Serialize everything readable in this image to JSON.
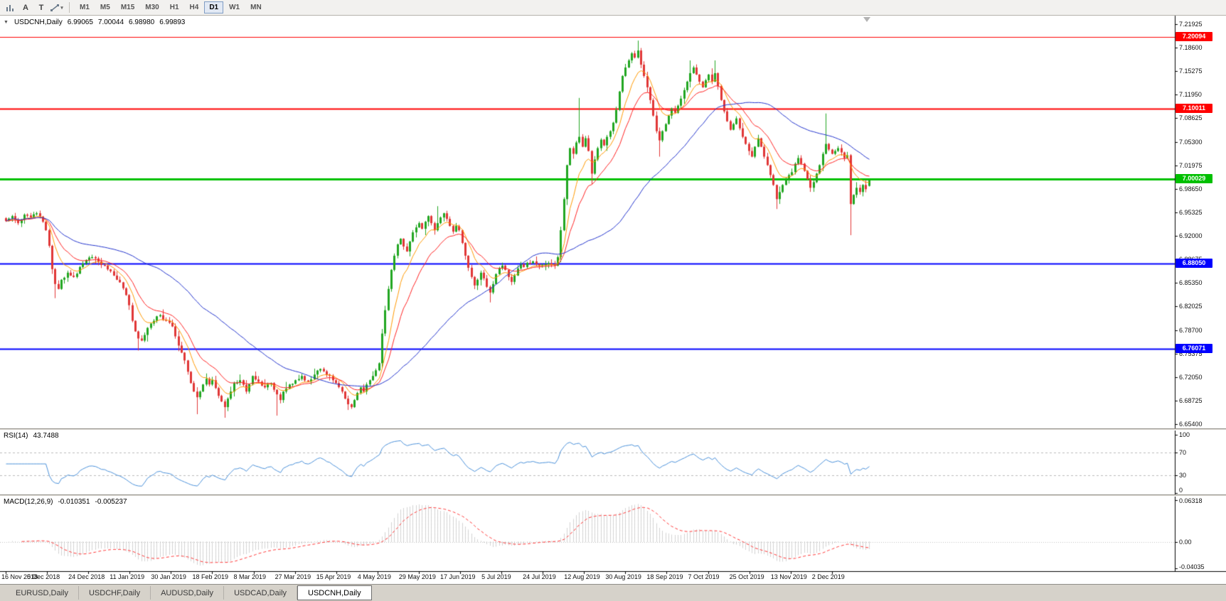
{
  "toolbar": {
    "cursor_label": "A",
    "text_label": "T",
    "timeframes": [
      {
        "label": "M1",
        "active": false
      },
      {
        "label": "M5",
        "active": false
      },
      {
        "label": "M15",
        "active": false
      },
      {
        "label": "M30",
        "active": false
      },
      {
        "label": "H1",
        "active": false
      },
      {
        "label": "H4",
        "active": false
      },
      {
        "label": "D1",
        "active": true
      },
      {
        "label": "W1",
        "active": false
      },
      {
        "label": "MN",
        "active": false
      }
    ]
  },
  "chart": {
    "collapse_arrow": "▼",
    "symbol_title": "USDCNH,Daily",
    "ohlc": {
      "open": "6.99065",
      "high": "7.00044",
      "low": "6.98980",
      "close": "6.99893"
    },
    "price_ticks": [
      "7.21925",
      "7.18600",
      "7.15275",
      "7.11950",
      "7.08625",
      "7.05300",
      "7.01975",
      "6.98650",
      "6.95325",
      "6.92000",
      "6.88675",
      "6.85350",
      "6.82025",
      "6.78700",
      "6.75375",
      "6.72050",
      "6.68725",
      "6.65400"
    ],
    "dates": [
      "16 Nov 2018",
      "5 Dec 2018",
      "24 Dec 2018",
      "11 Jan 2019",
      "30 Jan 2019",
      "18 Feb 2019",
      "8 Mar 2019",
      "27 Mar 2019",
      "15 Apr 2019",
      "4 May 2019",
      "29 May 2019",
      "17 Jun 2019",
      "5 Jul 2019",
      "24 Jul 2019",
      "12 Aug 2019",
      "30 Aug 2019",
      "18 Sep 2019",
      "7 Oct 2019",
      "25 Oct 2019",
      "13 Nov 2019",
      "2 Dec 2019"
    ]
  },
  "rsi": {
    "label": "RSI(14)",
    "value": "43.7488",
    "ticks": [
      "100",
      "70",
      "30",
      "0"
    ],
    "color": "#4a90d9"
  },
  "macd": {
    "label": "MACD(12,26,9)",
    "value_main": "-0.010351",
    "value_signal": "-0.005237",
    "ticks": [
      "0.06318",
      "0.00",
      "-0.04035"
    ]
  },
  "tabs": [
    {
      "label": "EURUSD,Daily",
      "active": false
    },
    {
      "label": "USDCHF,Daily",
      "active": false
    },
    {
      "label": "AUDUSD,Daily",
      "active": false
    },
    {
      "label": "USDCAD,Daily",
      "active": false
    },
    {
      "label": "USDCNH,Daily",
      "active": true
    }
  ],
  "chart_data": {
    "type": "candlestick",
    "symbol": "USDCNH",
    "timeframe": "Daily",
    "bars": 281,
    "label_every_bars": 13.4,
    "price_axis": {
      "top": 7.21925,
      "bottom": 6.654,
      "tick_step": 0.03325
    },
    "colors": {
      "up": "#21a621",
      "down": "#e03636"
    },
    "hlines": [
      {
        "label": "7.20094",
        "value": 7.20094,
        "color": "#ff0000",
        "width": 1
      },
      {
        "label": "7.10011",
        "value": 7.10011,
        "color": "#ff0000",
        "width": 2
      },
      {
        "label": "7.00029",
        "value": 7.00029,
        "color": "#00c000",
        "width": 3
      },
      {
        "label": "6.88050",
        "value": 6.8805,
        "color": "#0000ff",
        "width": 2
      },
      {
        "label": "6.76071",
        "value": 6.76071,
        "color": "#0000ff",
        "width": 2
      }
    ],
    "moving_averages": [
      {
        "name": "fast",
        "type": "ema",
        "period": 8,
        "color": "#ff9900"
      },
      {
        "name": "medium",
        "type": "ema",
        "period": 16,
        "color": "#ff2222"
      },
      {
        "name": "slow",
        "type": "sma",
        "period": 50,
        "color": "#2233cc"
      }
    ],
    "rsi": {
      "period": 14,
      "last": 43.7488,
      "range": [
        0,
        100
      ],
      "levels": [
        70,
        30
      ]
    },
    "macd": {
      "fast": 12,
      "slow": 26,
      "signal": 9,
      "last_main": -0.010351,
      "last_signal": -0.005237,
      "range": [
        -0.04035,
        0.06318
      ]
    },
    "last_bar": {
      "open": 6.99065,
      "high": 7.00044,
      "low": 6.9898,
      "close": 6.99893
    },
    "close_anchors": [
      [
        0,
        6.941
      ],
      [
        2,
        6.948
      ],
      [
        4,
        6.938
      ],
      [
        6,
        6.95
      ],
      [
        8,
        6.946
      ],
      [
        10,
        6.952
      ],
      [
        12,
        6.94
      ],
      [
        13,
        6.928
      ],
      [
        14,
        6.906
      ],
      [
        15,
        6.873
      ],
      [
        16,
        6.852
      ],
      [
        17,
        6.845
      ],
      [
        18,
        6.858
      ],
      [
        20,
        6.868
      ],
      [
        22,
        6.862
      ],
      [
        24,
        6.876
      ],
      [
        26,
        6.886
      ],
      [
        28,
        6.89
      ],
      [
        30,
        6.884
      ],
      [
        32,
        6.878
      ],
      [
        34,
        6.87
      ],
      [
        36,
        6.858
      ],
      [
        38,
        6.846
      ],
      [
        40,
        6.822
      ],
      [
        41,
        6.8
      ],
      [
        42,
        6.785
      ],
      [
        43,
        6.775
      ],
      [
        44,
        6.772
      ],
      [
        45,
        6.78
      ],
      [
        46,
        6.79
      ],
      [
        48,
        6.8
      ],
      [
        50,
        6.808
      ],
      [
        52,
        6.8
      ],
      [
        54,
        6.792
      ],
      [
        55,
        6.778
      ],
      [
        56,
        6.765
      ],
      [
        57,
        6.755
      ],
      [
        58,
        6.744
      ],
      [
        59,
        6.728
      ],
      [
        60,
        6.712
      ],
      [
        61,
        6.7
      ],
      [
        62,
        6.692
      ],
      [
        63,
        6.7
      ],
      [
        64,
        6.71
      ],
      [
        65,
        6.718
      ],
      [
        66,
        6.71
      ],
      [
        67,
        6.716
      ],
      [
        68,
        6.705
      ],
      [
        69,
        6.694
      ],
      [
        70,
        6.686
      ],
      [
        71,
        6.678
      ],
      [
        72,
        6.69
      ],
      [
        73,
        6.7
      ],
      [
        74,
        6.712
      ],
      [
        76,
        6.716
      ],
      [
        78,
        6.7
      ],
      [
        80,
        6.722
      ],
      [
        82,
        6.714
      ],
      [
        84,
        6.706
      ],
      [
        86,
        6.712
      ],
      [
        88,
        6.696
      ],
      [
        89,
        6.688
      ],
      [
        90,
        6.7
      ],
      [
        92,
        6.71
      ],
      [
        94,
        6.716
      ],
      [
        96,
        6.722
      ],
      [
        98,
        6.714
      ],
      [
        100,
        6.724
      ],
      [
        102,
        6.732
      ],
      [
        104,
        6.724
      ],
      [
        106,
        6.716
      ],
      [
        107,
        6.712
      ],
      [
        109,
        6.7
      ],
      [
        110,
        6.69
      ],
      [
        111,
        6.682
      ],
      [
        112,
        6.678
      ],
      [
        113,
        6.688
      ],
      [
        114,
        6.698
      ],
      [
        115,
        6.706
      ],
      [
        116,
        6.7
      ],
      [
        117,
        6.71
      ],
      [
        118,
        6.716
      ],
      [
        119,
        6.722
      ],
      [
        120,
        6.73
      ],
      [
        121,
        6.74
      ],
      [
        122,
        6.782
      ],
      [
        123,
        6.815
      ],
      [
        124,
        6.845
      ],
      [
        125,
        6.872
      ],
      [
        126,
        6.892
      ],
      [
        127,
        6.908
      ],
      [
        128,
        6.916
      ],
      [
        129,
        6.905
      ],
      [
        130,
        6.898
      ],
      [
        131,
        6.912
      ],
      [
        132,
        6.925
      ],
      [
        133,
        6.932
      ],
      [
        134,
        6.938
      ],
      [
        135,
        6.93
      ],
      [
        136,
        6.94
      ],
      [
        137,
        6.948
      ],
      [
        138,
        6.938
      ],
      [
        139,
        6.928
      ],
      [
        140,
        6.938
      ],
      [
        141,
        6.946
      ],
      [
        142,
        6.952
      ],
      [
        143,
        6.944
      ],
      [
        144,
        6.934
      ],
      [
        145,
        6.926
      ],
      [
        146,
        6.934
      ],
      [
        147,
        6.928
      ],
      [
        148,
        6.91
      ],
      [
        149,
        6.892
      ],
      [
        150,
        6.875
      ],
      [
        151,
        6.862
      ],
      [
        152,
        6.85
      ],
      [
        153,
        6.858
      ],
      [
        154,
        6.868
      ],
      [
        155,
        6.86
      ],
      [
        156,
        6.848
      ],
      [
        157,
        6.84
      ],
      [
        158,
        6.852
      ],
      [
        159,
        6.866
      ],
      [
        160,
        6.874
      ],
      [
        161,
        6.878
      ],
      [
        162,
        6.872
      ],
      [
        163,
        6.862
      ],
      [
        164,
        6.855
      ],
      [
        165,
        6.864
      ],
      [
        166,
        6.874
      ],
      [
        167,
        6.88
      ],
      [
        168,
        6.876
      ],
      [
        169,
        6.882
      ],
      [
        171,
        6.884
      ],
      [
        173,
        6.878
      ],
      [
        175,
        6.88
      ],
      [
        177,
        6.88
      ],
      [
        178,
        6.878
      ],
      [
        179,
        6.89
      ],
      [
        180,
        6.928
      ],
      [
        181,
        6.972
      ],
      [
        182,
        7.02
      ],
      [
        183,
        7.044
      ],
      [
        184,
        7.036
      ],
      [
        185,
        7.052
      ],
      [
        186,
        7.06
      ],
      [
        187,
        7.046
      ],
      [
        188,
        7.058
      ],
      [
        189,
        7.04
      ],
      [
        190,
        7.008
      ],
      [
        191,
        7.028
      ],
      [
        192,
        7.044
      ],
      [
        193,
        7.056
      ],
      [
        194,
        7.048
      ],
      [
        195,
        7.06
      ],
      [
        196,
        7.068
      ],
      [
        197,
        7.08
      ],
      [
        198,
        7.098
      ],
      [
        199,
        7.124
      ],
      [
        200,
        7.146
      ],
      [
        201,
        7.158
      ],
      [
        202,
        7.168
      ],
      [
        203,
        7.178
      ],
      [
        204,
        7.172
      ],
      [
        205,
        7.182
      ],
      [
        206,
        7.162
      ],
      [
        207,
        7.146
      ],
      [
        208,
        7.13
      ],
      [
        209,
        7.112
      ],
      [
        210,
        7.09
      ],
      [
        211,
        7.068
      ],
      [
        212,
        7.055
      ],
      [
        213,
        7.068
      ],
      [
        214,
        7.078
      ],
      [
        215,
        7.09
      ],
      [
        216,
        7.1
      ],
      [
        217,
        7.094
      ],
      [
        218,
        7.104
      ],
      [
        219,
        7.114
      ],
      [
        220,
        7.126
      ],
      [
        221,
        7.138
      ],
      [
        222,
        7.15
      ],
      [
        223,
        7.158
      ],
      [
        224,
        7.148
      ],
      [
        225,
        7.138
      ],
      [
        226,
        7.13
      ],
      [
        227,
        7.14
      ],
      [
        228,
        7.148
      ],
      [
        229,
        7.138
      ],
      [
        230,
        7.15
      ],
      [
        231,
        7.132
      ],
      [
        232,
        7.112
      ],
      [
        233,
        7.096
      ],
      [
        234,
        7.082
      ],
      [
        235,
        7.07
      ],
      [
        236,
        7.078
      ],
      [
        237,
        7.086
      ],
      [
        238,
        7.072
      ],
      [
        239,
        7.06
      ],
      [
        240,
        7.05
      ],
      [
        241,
        7.04
      ],
      [
        242,
        7.032
      ],
      [
        243,
        7.046
      ],
      [
        244,
        7.058
      ],
      [
        245,
        7.046
      ],
      [
        246,
        7.032
      ],
      [
        247,
        7.02
      ],
      [
        248,
        7.006
      ],
      [
        249,
        6.992
      ],
      [
        250,
        6.972
      ],
      [
        251,
        6.982
      ],
      [
        252,
        6.992
      ],
      [
        253,
        7.0
      ],
      [
        254,
        7.006
      ],
      [
        255,
        7.01
      ],
      [
        256,
        7.022
      ],
      [
        257,
        7.03
      ],
      [
        258,
        7.022
      ],
      [
        259,
        7.012
      ],
      [
        260,
        7.0
      ],
      [
        261,
        6.988
      ],
      [
        262,
        6.996
      ],
      [
        263,
        7.008
      ],
      [
        264,
        7.02
      ],
      [
        265,
        7.036
      ],
      [
        266,
        7.05
      ],
      [
        267,
        7.042
      ],
      [
        268,
        7.036
      ],
      [
        269,
        7.04
      ],
      [
        270,
        7.044
      ],
      [
        271,
        7.038
      ],
      [
        272,
        7.03
      ],
      [
        273,
        7.034
      ],
      [
        274,
        6.965
      ],
      [
        275,
        6.978
      ],
      [
        276,
        6.988
      ],
      [
        277,
        6.982
      ],
      [
        278,
        6.992
      ],
      [
        279,
        6.986
      ],
      [
        280,
        6.99893
      ]
    ],
    "wick_spikes": [
      {
        "i": 16,
        "l": 6.832
      },
      {
        "i": 43,
        "l": 6.758
      },
      {
        "i": 56,
        "l": 6.757
      },
      {
        "i": 62,
        "l": 6.668
      },
      {
        "i": 71,
        "l": 6.663
      },
      {
        "i": 88,
        "l": 6.666
      },
      {
        "i": 111,
        "l": 6.674
      },
      {
        "i": 140,
        "h": 6.962
      },
      {
        "i": 157,
        "l": 6.826
      },
      {
        "i": 186,
        "h": 7.115
      },
      {
        "i": 190,
        "l": 6.993
      },
      {
        "i": 205,
        "h": 7.196
      },
      {
        "i": 212,
        "l": 7.032
      },
      {
        "i": 222,
        "h": 7.168
      },
      {
        "i": 230,
        "h": 7.168
      },
      {
        "i": 250,
        "l": 6.958
      },
      {
        "i": 266,
        "h": 7.093
      },
      {
        "i": 274,
        "l": 6.921
      }
    ]
  }
}
